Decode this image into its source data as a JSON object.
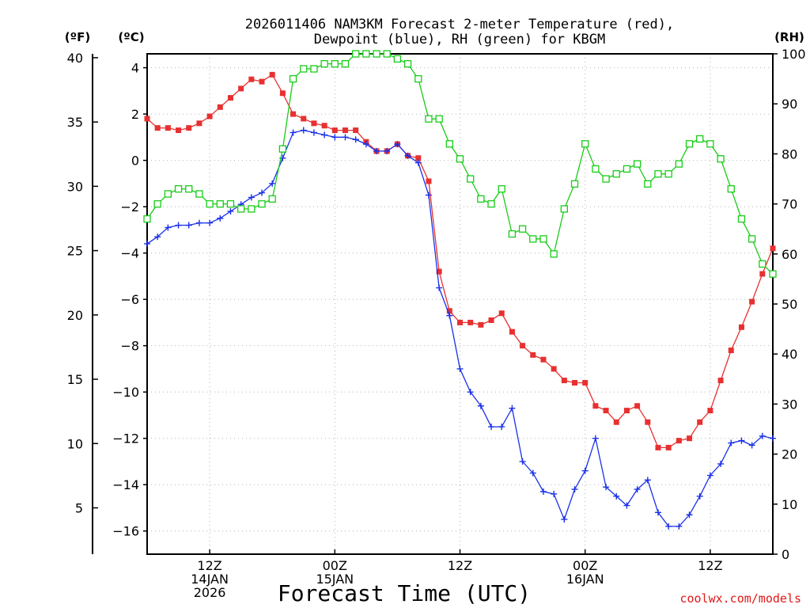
{
  "chart_data": {
    "type": "line",
    "title": [
      "2026011406 NAM3KM Forecast 2-meter Temperature (red),",
      "Dewpoint (blue), RH (green) for KBGM"
    ],
    "xlabel": "Forecast Time (UTC)",
    "credit": "coolwx.com/models",
    "left_axis_c": {
      "unit": "(ºC)",
      "range": [
        -17.0,
        4.6
      ],
      "ticks": [
        4,
        2,
        0,
        -2,
        -4,
        -6,
        -8,
        -10,
        -12,
        -14,
        -16
      ]
    },
    "left_axis_f": {
      "unit": "(ºF)",
      "range": [
        1.4,
        40.3
      ],
      "ticks": [
        40,
        35,
        30,
        25,
        20,
        15,
        10,
        5
      ]
    },
    "right_axis_rh": {
      "unit": "(RH)",
      "range": [
        0,
        100
      ],
      "ticks": [
        100,
        90,
        80,
        70,
        60,
        50,
        40,
        30,
        20,
        10,
        0
      ]
    },
    "x_range_hours": [
      6,
      66
    ],
    "x_ticks": [
      {
        "hour": 12,
        "lines": [
          "12Z",
          "14JAN",
          "2026"
        ]
      },
      {
        "hour": 24,
        "lines": [
          "00Z",
          "15JAN"
        ]
      },
      {
        "hour": 36,
        "lines": [
          "12Z"
        ]
      },
      {
        "hour": 48,
        "lines": [
          "00Z",
          "16JAN"
        ]
      },
      {
        "hour": 60,
        "lines": [
          "12Z"
        ]
      }
    ],
    "grid": true,
    "series": [
      {
        "name": "Temperature",
        "axis": "C",
        "color": "#e83030",
        "marker": "filled-square",
        "x": [
          6,
          7,
          8,
          9,
          10,
          11,
          12,
          13,
          14,
          15,
          16,
          17,
          18,
          19,
          20,
          21,
          22,
          23,
          24,
          25,
          26,
          27,
          28,
          29,
          30,
          31,
          32,
          33,
          34,
          35,
          36,
          37,
          38,
          39,
          40,
          41,
          42,
          43,
          44,
          45,
          46,
          47,
          48,
          49,
          50,
          51,
          52,
          53,
          54,
          55,
          56,
          57,
          58,
          59,
          60,
          61,
          62,
          63,
          64,
          65,
          66
        ],
        "values": [
          1.8,
          1.4,
          1.4,
          1.3,
          1.4,
          1.6,
          1.9,
          2.3,
          2.7,
          3.1,
          3.5,
          3.4,
          3.7,
          2.9,
          2.0,
          1.8,
          1.6,
          1.5,
          1.3,
          1.3,
          1.3,
          0.8,
          0.4,
          0.4,
          0.7,
          0.2,
          0.1,
          -0.9,
          -4.8,
          -6.5,
          -7.0,
          -7.0,
          -7.1,
          -6.9,
          -6.6,
          -7.4,
          -8.0,
          -8.4,
          -8.6,
          -9.0,
          -9.5,
          -9.6,
          -9.6,
          -10.6,
          -10.8,
          -11.3,
          -10.8,
          -10.6,
          -11.3,
          -12.4,
          -12.4,
          -12.1,
          -12.0,
          -11.3,
          -10.8,
          -9.5,
          -8.2,
          -7.2,
          -6.1,
          -4.9,
          -3.8
        ]
      },
      {
        "name": "Dewpoint",
        "axis": "C",
        "color": "#1a30e8",
        "marker": "plus",
        "x": [
          6,
          7,
          8,
          9,
          10,
          11,
          12,
          13,
          14,
          15,
          16,
          17,
          18,
          19,
          20,
          21,
          22,
          23,
          24,
          25,
          26,
          27,
          28,
          29,
          30,
          31,
          32,
          33,
          34,
          35,
          36,
          37,
          38,
          39,
          40,
          41,
          42,
          43,
          44,
          45,
          46,
          47,
          48,
          49,
          50,
          51,
          52,
          53,
          54,
          55,
          56,
          57,
          58,
          59,
          60,
          61,
          62,
          63,
          64,
          65,
          66
        ],
        "values": [
          -3.6,
          -3.3,
          -2.9,
          -2.8,
          -2.8,
          -2.7,
          -2.7,
          -2.5,
          -2.2,
          -1.9,
          -1.6,
          -1.4,
          -1.0,
          0.1,
          1.2,
          1.3,
          1.2,
          1.1,
          1.0,
          1.0,
          0.9,
          0.7,
          0.4,
          0.4,
          0.7,
          0.2,
          -0.1,
          -1.5,
          -5.5,
          -6.7,
          -9.0,
          -10.0,
          -10.6,
          -11.5,
          -11.5,
          -10.7,
          -13.0,
          -13.5,
          -14.3,
          -14.4,
          -15.5,
          -14.2,
          -13.4,
          -12.0,
          -14.1,
          -14.5,
          -14.9,
          -14.2,
          -13.8,
          -15.2,
          -15.8,
          -15.8,
          -15.3,
          -14.5,
          -13.6,
          -13.1,
          -12.2,
          -12.1,
          -12.3,
          -11.9,
          -12.0
        ]
      },
      {
        "name": "RH",
        "axis": "RH",
        "color": "#18cc18",
        "marker": "open-square",
        "x": [
          6,
          7,
          8,
          9,
          10,
          11,
          12,
          13,
          14,
          15,
          16,
          17,
          18,
          19,
          20,
          21,
          22,
          23,
          24,
          25,
          26,
          27,
          28,
          29,
          30,
          31,
          32,
          33,
          34,
          35,
          36,
          37,
          38,
          39,
          40,
          41,
          42,
          43,
          44,
          45,
          46,
          47,
          48,
          49,
          50,
          51,
          52,
          53,
          54,
          55,
          56,
          57,
          58,
          59,
          60,
          61,
          62,
          63,
          64,
          65,
          66
        ],
        "values": [
          67,
          70,
          72,
          73,
          73,
          72,
          70,
          70,
          70,
          69,
          69,
          70,
          71,
          81,
          95,
          97,
          97,
          98,
          98,
          98,
          100,
          100,
          100,
          100,
          99,
          98,
          95,
          87,
          87,
          82,
          79,
          75,
          71,
          70,
          73,
          64,
          65,
          63,
          63,
          60,
          69,
          74,
          82,
          77,
          75,
          76,
          77,
          78,
          74,
          76,
          76,
          78,
          82,
          83,
          82,
          79,
          73,
          67,
          63,
          58,
          56
        ]
      }
    ]
  }
}
